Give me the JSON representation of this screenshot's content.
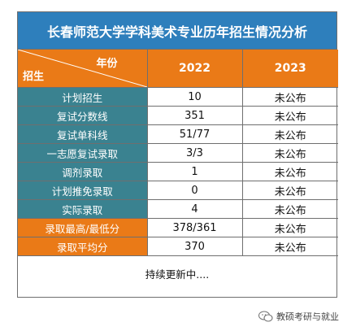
{
  "title": "长春师范大学学科美术专业历年招生情况分析",
  "header": {
    "corner_year": "年份",
    "corner_enroll": "招生",
    "years": [
      "2022",
      "2023"
    ]
  },
  "rows": [
    {
      "label": "计划招生",
      "v2022": "10",
      "v2023": "未公布",
      "color": "teal"
    },
    {
      "label": "复试分数线",
      "v2022": "351",
      "v2023": "未公布",
      "color": "teal"
    },
    {
      "label": "复试单科线",
      "v2022": "51/77",
      "v2023": "未公布",
      "color": "teal"
    },
    {
      "label": "一志愿复试录取",
      "v2022": "3/3",
      "v2023": "未公布",
      "color": "teal"
    },
    {
      "label": "调剂录取",
      "v2022": "1",
      "v2023": "未公布",
      "color": "teal"
    },
    {
      "label": "计划推免录取",
      "v2022": "0",
      "v2023": "未公布",
      "color": "teal"
    },
    {
      "label": "实际录取",
      "v2022": "4",
      "v2023": "未公布",
      "color": "teal"
    },
    {
      "label": "录取最高/最低分",
      "v2022": "378/361",
      "v2023": "未公布",
      "color": "orange"
    },
    {
      "label": "录取平均分",
      "v2022": "370",
      "v2023": "未公布",
      "color": "orange"
    }
  ],
  "footer": "持续更新中....",
  "watermark": "教硕考研与就业",
  "colors": {
    "title_bg": "#2e7fbc",
    "orange": "#ea7a17",
    "teal": "#3a8290"
  }
}
